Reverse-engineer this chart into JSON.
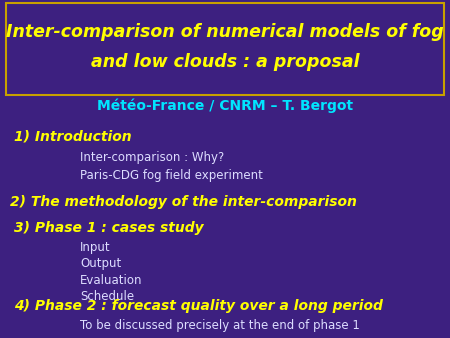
{
  "bg_color": "#3d2080",
  "title_line1": "Inter-comparison of numerical models of fog",
  "title_line2": "and low clouds : a proposal",
  "title_color": "#ffff00",
  "title_box_edge_color": "#c8a000",
  "subtitle": "Météo-France / CNRM – T. Bergot",
  "subtitle_color": "#00e5ff",
  "section1": "1) Introduction",
  "section1_color": "#ffff00",
  "section1_items": [
    "Inter-comparison : Why?",
    "Paris-CDG fog field experiment"
  ],
  "section1_items_color": "#ddddff",
  "section2": "2) The methodology of the inter-comparison",
  "section2_color": "#ffff00",
  "section3": "3) Phase 1 : cases study",
  "section3_color": "#ffff00",
  "section3_items": [
    "Input",
    "Output",
    "Evaluation",
    "Schedule"
  ],
  "section3_items_color": "#ddddff",
  "section4": "4) Phase 2 : forecast quality over a long period",
  "section4_color": "#ffff00",
  "section4_items": [
    "To be discussed precisely at the end of phase 1"
  ],
  "section4_items_color": "#ddddff"
}
